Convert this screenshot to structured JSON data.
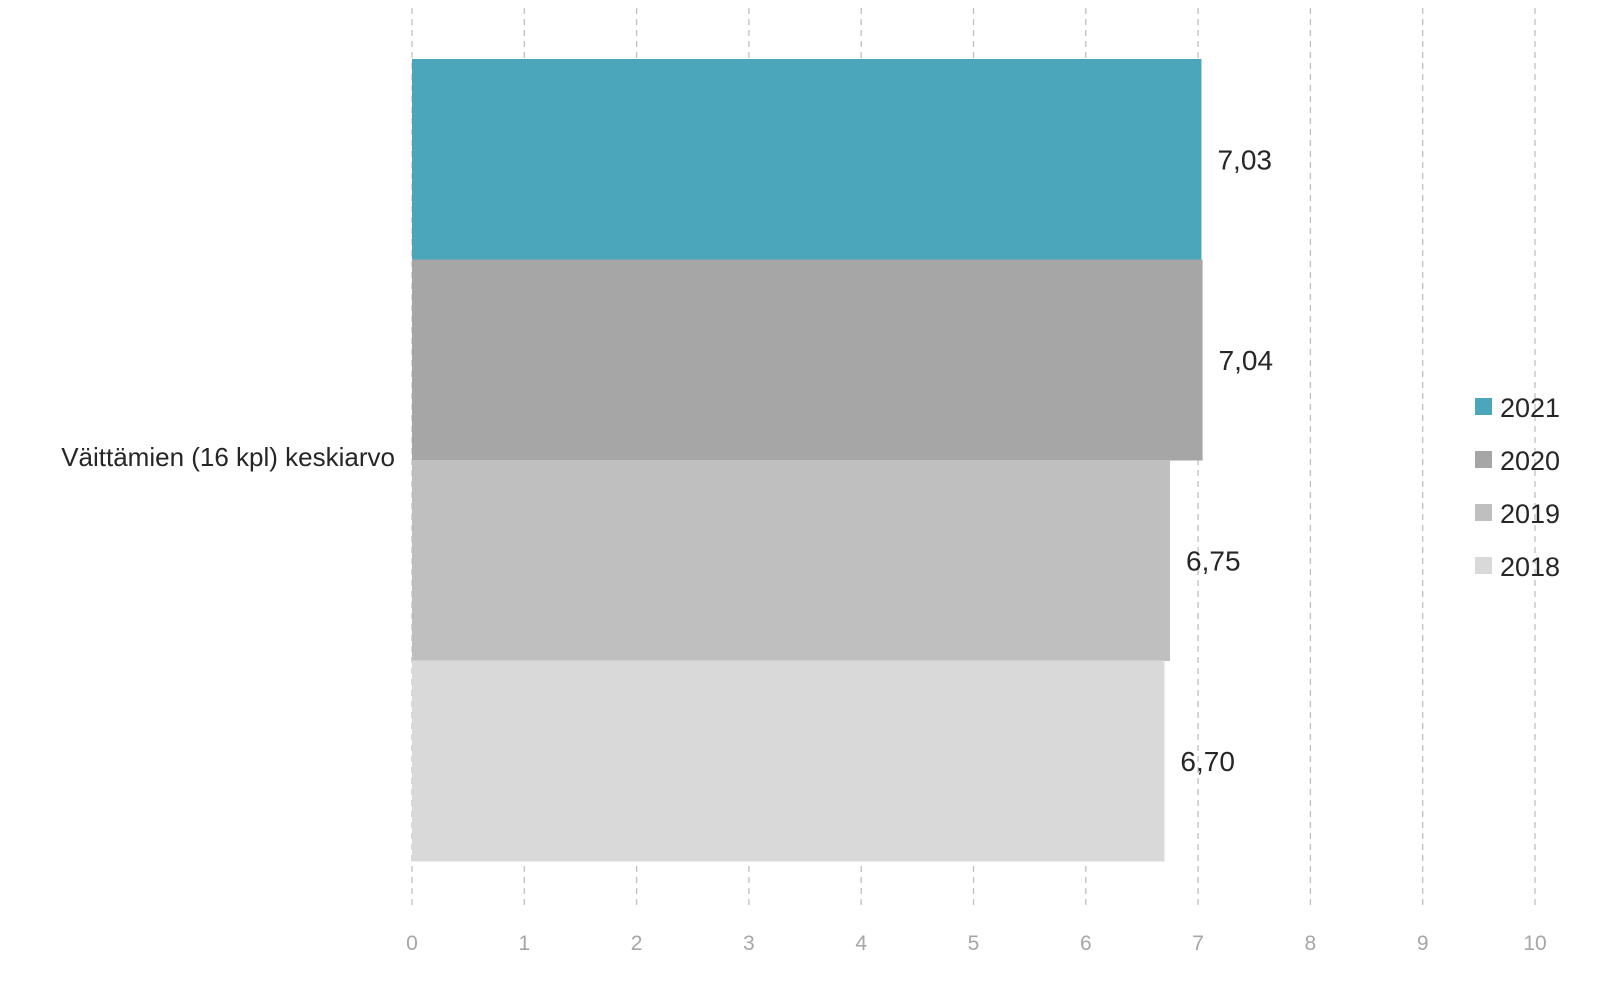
{
  "chart_data": {
    "type": "bar",
    "orientation": "horizontal",
    "categories": [
      "Väittämien (16 kpl) keskiarvo"
    ],
    "series": [
      {
        "name": "2021",
        "values": [
          7.03
        ],
        "value_label": "7,03",
        "color": "#4ba6bb"
      },
      {
        "name": "2020",
        "values": [
          7.04
        ],
        "value_label": "7,04",
        "color": "#a6a6a6"
      },
      {
        "name": "2019",
        "values": [
          6.75
        ],
        "value_label": "6,75",
        "color": "#bfbfbf"
      },
      {
        "name": "2018",
        "values": [
          6.7
        ],
        "value_label": "6,70",
        "color": "#d9d9d9"
      }
    ],
    "xlim": [
      0,
      10
    ],
    "xticks": [
      "0",
      "1",
      "2",
      "3",
      "4",
      "5",
      "6",
      "7",
      "8",
      "9",
      "10"
    ],
    "grid": true,
    "grid_style": "dashed vertical",
    "legend_position": "right",
    "title": "",
    "xlabel": "",
    "ylabel": ""
  }
}
